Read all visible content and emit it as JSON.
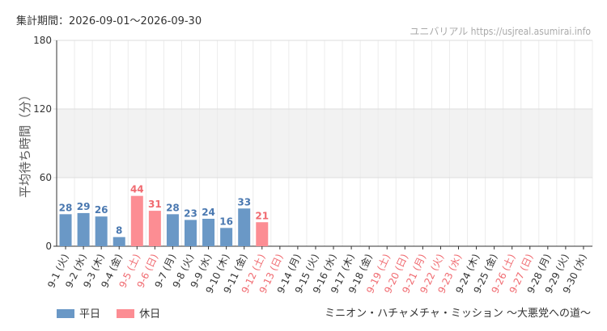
{
  "header": {
    "period": "集計期間：2026-09-01～2026-09-30",
    "source": "ユニバリアル  https://usjreal.asumirai.info"
  },
  "subtitle": "ミニオン・ハチャメチャ・ミッション ～大悪党への道～",
  "colors": {
    "weekday": "#6a98c6",
    "holiday": "#fc8d93",
    "weekday_label": "#4a78b0",
    "holiday_label": "#f06a70",
    "band": "#f2f2f2"
  },
  "chart_data": {
    "type": "bar",
    "ylabel": "平均待ち時間（分）",
    "ylim": [
      0,
      180
    ],
    "yticks": [
      "0",
      "60",
      "120",
      "180"
    ],
    "shaded_band": [
      60,
      120
    ],
    "categories": [
      "9-1 (火)",
      "9-2 (水)",
      "9-3 (木)",
      "9-4 (金)",
      "9-5 (土)",
      "9-6 (日)",
      "9-7 (月)",
      "9-8 (火)",
      "9-9 (水)",
      "9-10 (木)",
      "9-11 (金)",
      "9-12 (土)",
      "9-13 (日)",
      "9-14 (月)",
      "9-15 (火)",
      "9-16 (水)",
      "9-17 (木)",
      "9-18 (金)",
      "9-19 (土)",
      "9-20 (日)",
      "9-21 (月)",
      "9-22 (火)",
      "9-23 (水)",
      "9-24 (木)",
      "9-25 (金)",
      "9-26 (土)",
      "9-27 (日)",
      "9-28 (月)",
      "9-29 (火)",
      "9-30 (水)"
    ],
    "holiday_flags": [
      false,
      false,
      false,
      false,
      true,
      true,
      false,
      false,
      false,
      false,
      false,
      true,
      true,
      false,
      false,
      false,
      false,
      false,
      true,
      true,
      true,
      true,
      true,
      false,
      false,
      true,
      true,
      false,
      false,
      false
    ],
    "values": [
      28,
      29,
      26,
      8,
      44,
      31,
      28,
      23,
      24,
      16,
      33,
      21,
      null,
      null,
      null,
      null,
      null,
      null,
      null,
      null,
      null,
      null,
      null,
      null,
      null,
      null,
      null,
      null,
      null,
      null
    ],
    "series": [
      {
        "name": "平日"
      },
      {
        "name": "休日"
      }
    ],
    "legend_position": "bottom-left"
  }
}
